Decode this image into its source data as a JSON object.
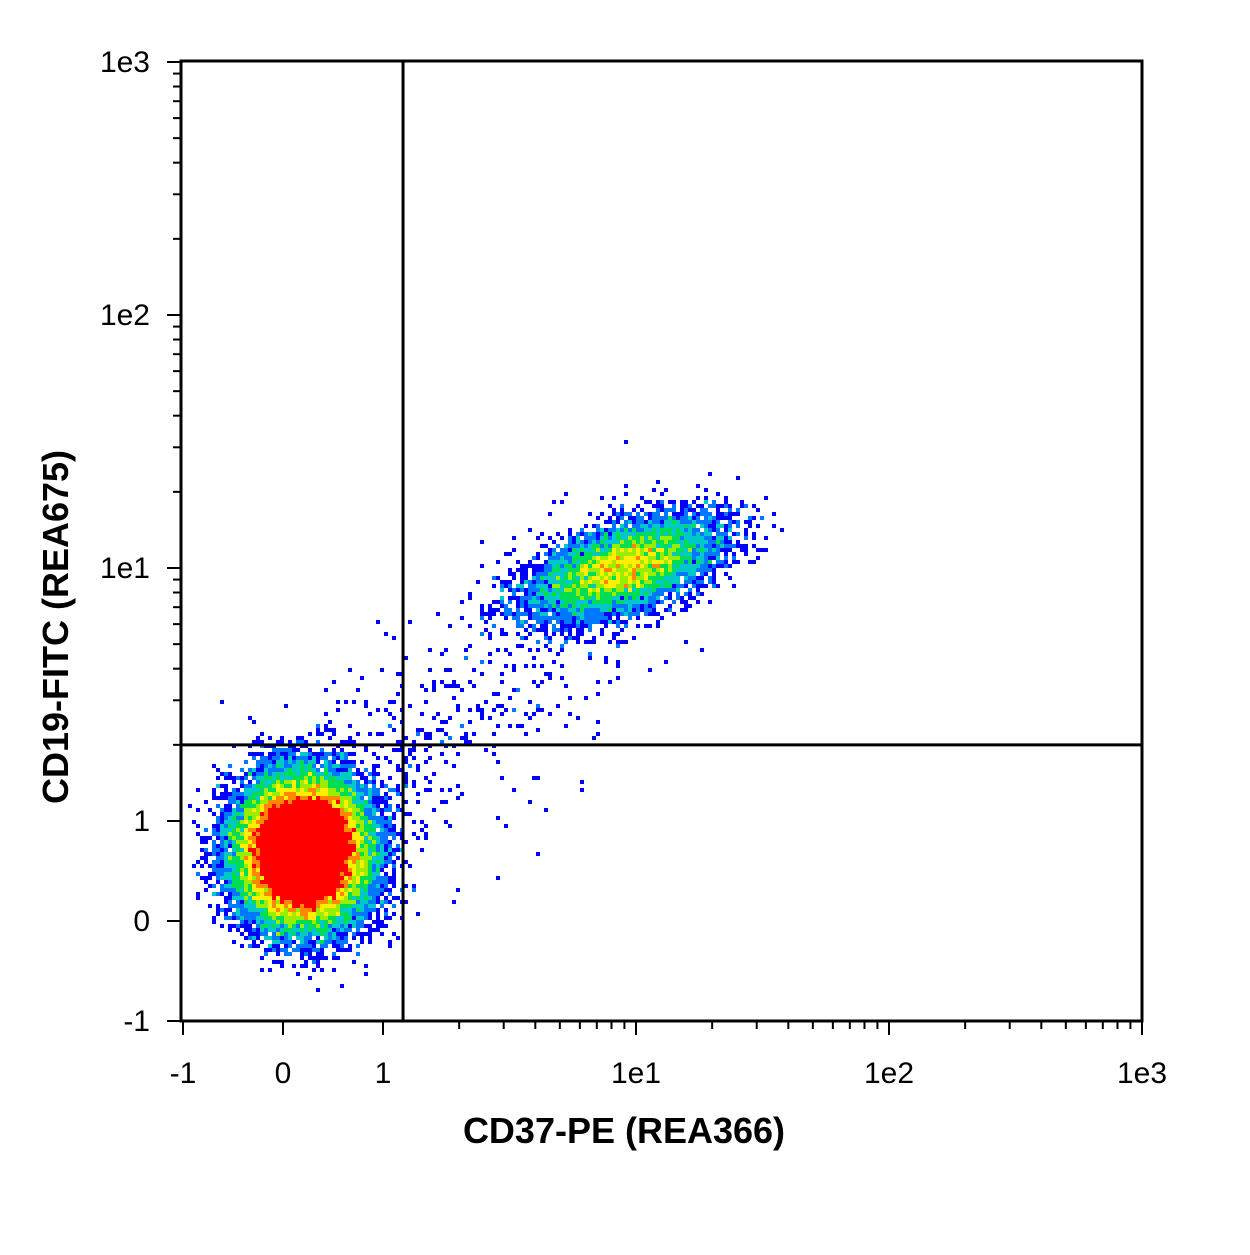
{
  "chart_data": {
    "type": "scatter",
    "title": "",
    "xlabel": "CD37-PE (REA366)",
    "ylabel": "CD19-FITC (REA675)",
    "x_scale": "biexponential",
    "y_scale": "biexponential",
    "xlim": [
      -1,
      1000
    ],
    "ylim": [
      -1,
      1000
    ],
    "x_tick_labels": [
      "-1",
      "0",
      "1",
      "1e1",
      "1e2",
      "1e3"
    ],
    "y_tick_labels": [
      "-1",
      "0",
      "1",
      "1e1",
      "1e2",
      "1e3"
    ],
    "gate": {
      "x": 1.2,
      "y": 2
    },
    "density_colors": [
      "#0000ff",
      "#0077ff",
      "#00c8c8",
      "#00dd55",
      "#99ee00",
      "#ffee00",
      "#ff8800",
      "#ff0000"
    ],
    "populations": [
      {
        "quadrant": "lower-left",
        "center": {
          "x": 0.2,
          "y": 0.7
        },
        "relative_density": "high"
      },
      {
        "quadrant": "upper-right",
        "center": {
          "x": 9,
          "y": 10
        },
        "relative_density": "low"
      }
    ],
    "grid": false,
    "legend": "none"
  }
}
